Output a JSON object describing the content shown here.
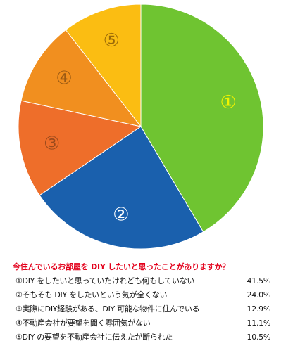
{
  "chart_data": {
    "type": "pie",
    "categories": [
      "①DIY をしたいと思っていたけれども何もしていない",
      "②そもそも DIY をしたいという気が全くない",
      "③実際にDIY経験がある、DIY 可能な物件に住んでいる",
      "④不動産会社が要望を聞く雰囲気がない",
      "⑤DIY の要望を不動産会社に伝えたが断られた"
    ],
    "values": [
      41.5,
      24.0,
      12.9,
      11.1,
      10.5
    ],
    "value_labels": [
      "41.5%",
      "24.0%",
      "12.9%",
      "11.1%",
      "10.5%"
    ],
    "slice_labels": [
      "①",
      "②",
      "③",
      "④",
      "⑤"
    ],
    "title": "今住んでいるお部屋を DIY したいと思ったことがありますか？",
    "colors": [
      "#6fc431",
      "#1a60ad",
      "#ee6e2a",
      "#f18f1f",
      "#fbbd12"
    ],
    "slice_label_colors": [
      "#f2f200",
      "#ffffff",
      "#9a4a1c",
      "#9a5a14",
      "#9a6a08"
    ],
    "start_angle": "12 o'clock",
    "direction": "clockwise",
    "legend_position": "bottom"
  }
}
